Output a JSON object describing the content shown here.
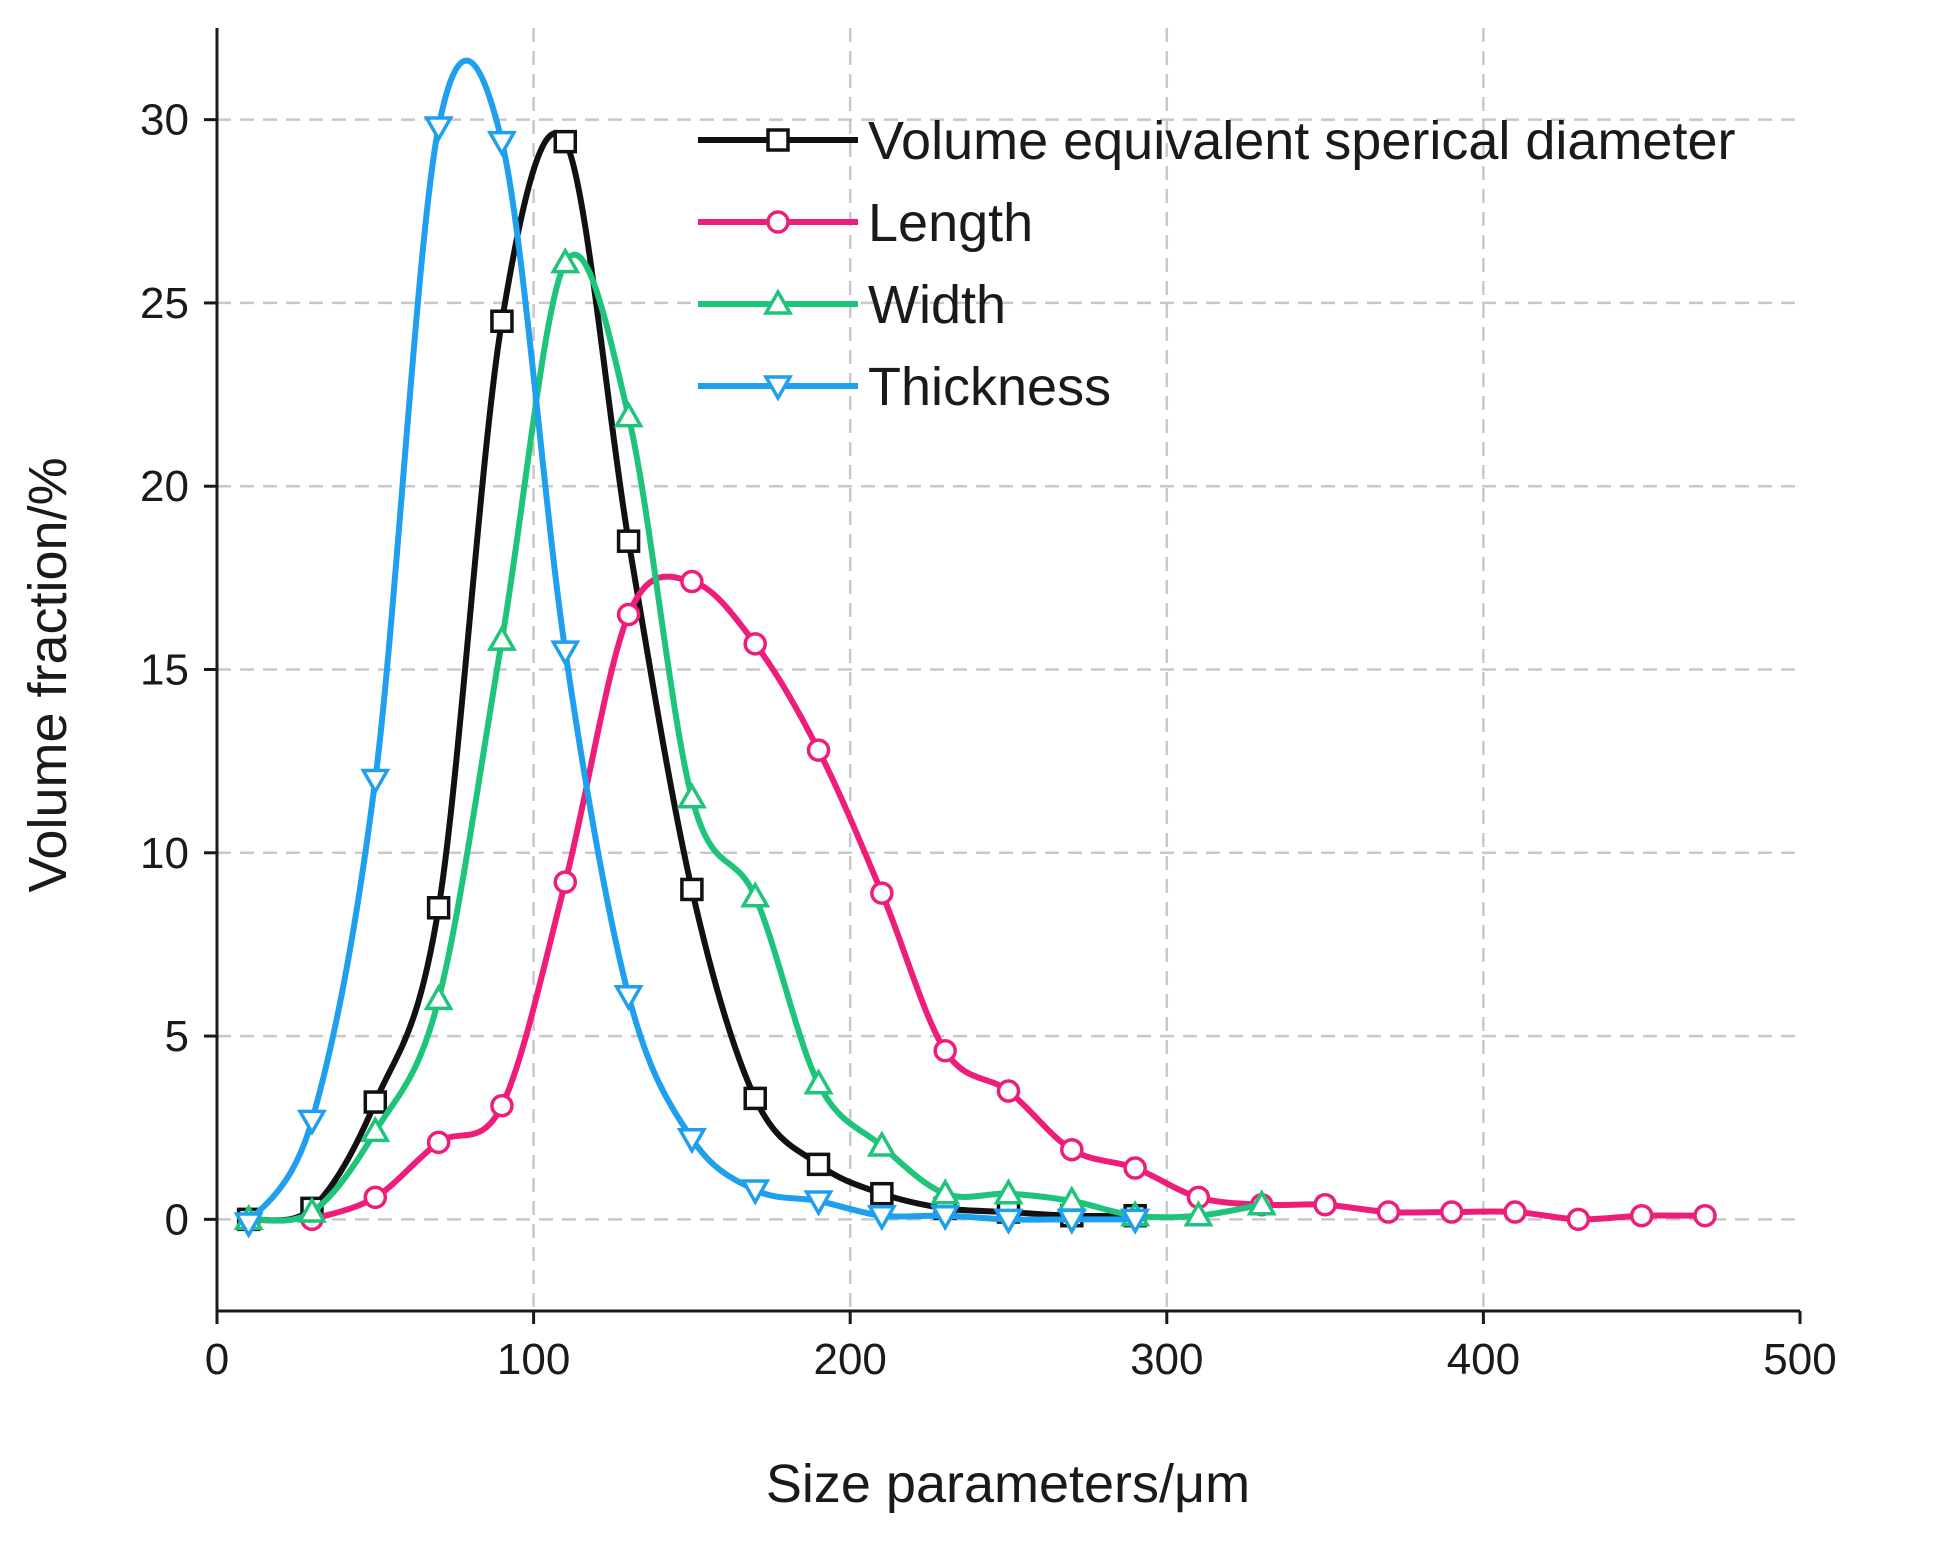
{
  "chart_data": {
    "type": "line",
    "title": "",
    "xlabel": "Size parameters/μm",
    "ylabel": "Volume fraction/%",
    "xlim": [
      0,
      500
    ],
    "ylim": [
      -2.5,
      32.5
    ],
    "xticks": [
      0,
      100,
      200,
      300,
      400,
      500
    ],
    "yticks": [
      0,
      5,
      10,
      15,
      20,
      25,
      30
    ],
    "grid": true,
    "legend_position": "top-right",
    "series": [
      {
        "name": "Volume equivalent sperical diameter",
        "color": "#111111",
        "marker": "square",
        "x": [
          10,
          30,
          50,
          70,
          90,
          110,
          130,
          150,
          170,
          190,
          210,
          230,
          250,
          270,
          290
        ],
        "y": [
          0,
          0.3,
          3.2,
          8.5,
          24.5,
          29.4,
          18.5,
          9.0,
          3.3,
          1.5,
          0.7,
          0.3,
          0.2,
          0.1,
          0.1
        ]
      },
      {
        "name": "Length",
        "color": "#ee1d7a",
        "marker": "circle",
        "x": [
          30,
          50,
          70,
          90,
          110,
          130,
          150,
          170,
          190,
          210,
          230,
          250,
          270,
          290,
          310,
          330,
          350,
          370,
          390,
          410,
          430,
          450,
          470
        ],
        "y": [
          0,
          0.6,
          2.1,
          3.1,
          9.2,
          16.5,
          17.4,
          15.7,
          12.8,
          8.9,
          4.6,
          3.5,
          1.9,
          1.4,
          0.6,
          0.4,
          0.4,
          0.2,
          0.2,
          0.2,
          0.0,
          0.1,
          0.1
        ]
      },
      {
        "name": "Width",
        "color": "#1ec47a",
        "marker": "triangle-up",
        "x": [
          10,
          30,
          50,
          70,
          90,
          110,
          130,
          150,
          170,
          190,
          210,
          230,
          250,
          270,
          290,
          310,
          330
        ],
        "y": [
          0,
          0.2,
          2.4,
          6.0,
          15.8,
          26.1,
          21.9,
          11.5,
          8.8,
          3.7,
          2.0,
          0.7,
          0.7,
          0.5,
          0.1,
          0.1,
          0.4
        ]
      },
      {
        "name": "Thickness",
        "color": "#1ea0ee",
        "marker": "triangle-down",
        "x": [
          10,
          30,
          50,
          70,
          90,
          110,
          130,
          150,
          170,
          190,
          210,
          230,
          250,
          270,
          290
        ],
        "y": [
          -0.1,
          2.7,
          12.0,
          29.8,
          29.4,
          15.5,
          6.1,
          2.2,
          0.8,
          0.5,
          0.1,
          0.1,
          0.0,
          0.0,
          0.0
        ]
      }
    ]
  }
}
